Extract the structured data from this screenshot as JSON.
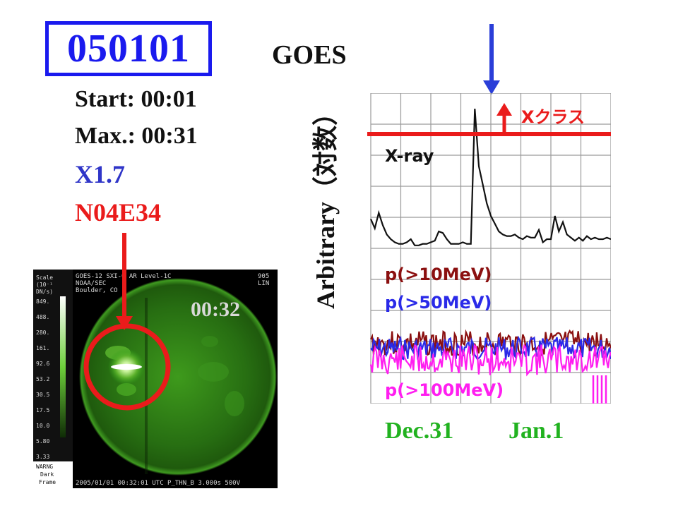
{
  "header": {
    "event_id": "050101",
    "instrument": "GOES"
  },
  "event": {
    "start": "Start: 00:01",
    "max": "Max.: 00:31",
    "class": "X1.7",
    "location": "N04E34"
  },
  "sun_image": {
    "time": "00:32",
    "header_left": "GOES-12  SXI-0 AR    Level-1C",
    "header_org1": "NOAA/SEC",
    "header_org2": "Boulder, CO",
    "header_right1": "905",
    "header_right2": "LIN",
    "scale_title": "Scale",
    "scale_units": "(10⁻¹",
    "scale_units2": "DN/s)",
    "scale_ticks": [
      "849.",
      "488.",
      "280.",
      "161.",
      "92.6",
      "53.2",
      "30.5",
      "17.5",
      "10.0",
      "5.80",
      "3.33"
    ],
    "warning_lines": [
      "WARNG",
      "Dark",
      "Frame"
    ],
    "footer": "2005/01/01 00:32:01 UTC  P_THN_B  3.000s  500V"
  },
  "chart_data": {
    "type": "line",
    "title": "GOES",
    "ylabel": "Arbitrary（対数）",
    "x_ticks": [
      "Dec.31",
      "Jan.1"
    ],
    "threshold_label": "Xクラス",
    "series": [
      {
        "name": "X-ray",
        "color": "#111111",
        "values": [
          0.28,
          0.22,
          0.32,
          0.24,
          0.18,
          0.15,
          0.13,
          0.12,
          0.12,
          0.13,
          0.15,
          0.11,
          0.11,
          0.12,
          0.12,
          0.13,
          0.14,
          0.2,
          0.19,
          0.15,
          0.12,
          0.12,
          0.12,
          0.13,
          0.12,
          0.12,
          0.99,
          0.62,
          0.5,
          0.38,
          0.3,
          0.25,
          0.2,
          0.18,
          0.17,
          0.17,
          0.18,
          0.16,
          0.15,
          0.17,
          0.16,
          0.16,
          0.21,
          0.13,
          0.15,
          0.15,
          0.3,
          0.2,
          0.26,
          0.18,
          0.16,
          0.14,
          0.16,
          0.14,
          0.17,
          0.15,
          0.16,
          0.15,
          0.15,
          0.16,
          0.15
        ]
      },
      {
        "name": "p(>10MeV)",
        "color": "#8b1010",
        "level": 0.0
      },
      {
        "name": "p(>50MeV)",
        "color": "#2a2ae8",
        "level": 0.0
      },
      {
        "name": "p(>100MeV)",
        "color": "#ff1ef0",
        "level": 0.0
      }
    ],
    "series_labels": {
      "xray": "X-ray",
      "p10": "p(>10MeV)",
      "p50": "p(>50MeV)",
      "p100": "p(>100MeV)"
    }
  },
  "colors": {
    "blue": "#1a1aee",
    "red": "#ea1b1b",
    "green": "#21b21f",
    "sun_green": "#2b9a17"
  }
}
